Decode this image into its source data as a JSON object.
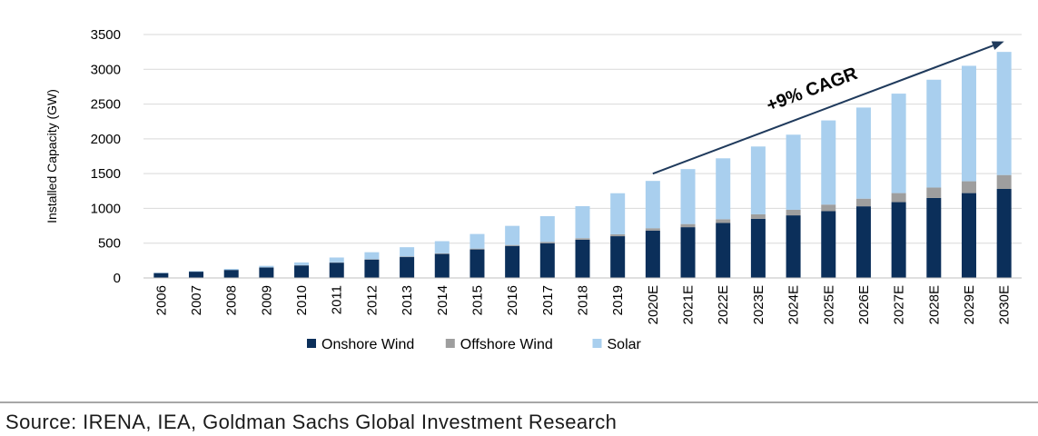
{
  "chart_data": {
    "type": "bar",
    "stacked": true,
    "xlabel": "",
    "ylabel": "Installed Capacity (GW)",
    "ylim": [
      0,
      3500
    ],
    "yticks": [
      0,
      500,
      1000,
      1500,
      2000,
      2500,
      3000,
      3500
    ],
    "grid": true,
    "legend_position": "bottom",
    "categories": [
      "2006",
      "2007",
      "2008",
      "2009",
      "2010",
      "2011",
      "2012",
      "2013",
      "2014",
      "2015",
      "2016",
      "2017",
      "2018",
      "2019",
      "2020E",
      "2021E",
      "2022E",
      "2023E",
      "2024E",
      "2025E",
      "2026E",
      "2027E",
      "2028E",
      "2029E",
      "2030E"
    ],
    "series": [
      {
        "name": "Onshore Wind",
        "color": "#0b2f5a",
        "values": [
          70,
          90,
          115,
          150,
          180,
          220,
          265,
          300,
          345,
          410,
          460,
          500,
          550,
          600,
          680,
          730,
          790,
          850,
          900,
          960,
          1030,
          1090,
          1150,
          1220,
          1280
        ]
      },
      {
        "name": "Offshore Wind",
        "color": "#9e9e9e",
        "values": [
          1,
          1,
          1,
          2,
          3,
          4,
          5,
          7,
          9,
          12,
          14,
          18,
          22,
          28,
          35,
          45,
          55,
          65,
          80,
          95,
          110,
          130,
          150,
          170,
          200
        ]
      },
      {
        "name": "Solar",
        "color": "#a9cfee",
        "values": [
          5,
          8,
          14,
          22,
          40,
          70,
          100,
          135,
          175,
          210,
          275,
          370,
          460,
          590,
          680,
          790,
          875,
          975,
          1080,
          1210,
          1310,
          1430,
          1550,
          1660,
          1770
        ]
      }
    ],
    "annotation": {
      "text": "+9% CAGR",
      "from_category": "2020E",
      "to_category": "2030E",
      "from_value": 1500,
      "to_value": 3400
    }
  },
  "source": "Source: IRENA, IEA, Goldman Sachs Global Investment Research"
}
